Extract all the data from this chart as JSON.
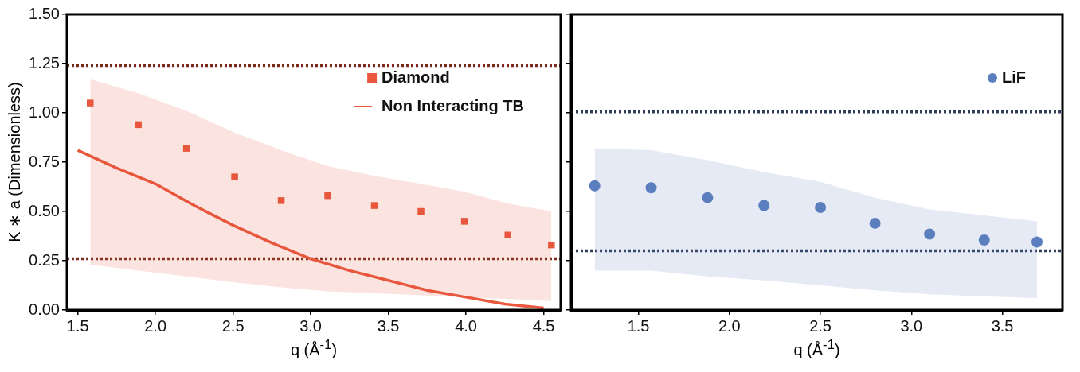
{
  "chart_data": [
    {
      "type": "scatter",
      "xlabel": "q (Å$^{-1}$)",
      "ylabel": "K ∗ a (Dimensionless)",
      "xlim": [
        1.43,
        4.61
      ],
      "xticks": [
        1.5,
        {
          "value": 2,
          "label": "2.0"
        },
        2.5,
        {
          "value": 3,
          "label": "3.0"
        },
        3.5,
        {
          "value": 4,
          "label": "4.0"
        },
        4.5
      ],
      "ylim": [
        0,
        1.5
      ],
      "yticks": [
        {
          "value": 0,
          "label": "0.00"
        },
        {
          "value": 0.25,
          "label": "0.25"
        },
        {
          "value": 0.5,
          "label": "0.50"
        },
        {
          "value": 0.75,
          "label": "0.75"
        },
        {
          "value": 1,
          "label": "1.00"
        },
        {
          "value": 1.25,
          "label": "1.25"
        },
        {
          "value": 1.5,
          "label": "1.50"
        }
      ],
      "legend": "top right",
      "grid": false,
      "series": [
        {
          "name": "Diamond",
          "marker": "square",
          "color": "#e9573d",
          "x": [
            1.58,
            1.89,
            2.2,
            2.51,
            2.81,
            3.11,
            3.41,
            3.71,
            3.99,
            4.27,
            4.55
          ],
          "values": [
            1.05,
            0.94,
            0.82,
            0.675,
            0.555,
            0.58,
            0.53,
            0.5,
            0.45,
            0.38,
            0.33
          ],
          "lower": [
            0.23,
            0.2,
            0.17,
            0.14,
            0.115,
            0.095,
            0.085,
            0.075,
            0.065,
            0.055,
            0.045
          ],
          "upper": [
            1.17,
            1.1,
            1.01,
            0.9,
            0.81,
            0.73,
            0.68,
            0.64,
            0.6,
            0.54,
            0.5
          ]
        },
        {
          "name": "Non Interacting TB",
          "type": "line",
          "marker": "none",
          "color": "#e9573d",
          "x": [
            1.5,
            1.75,
            2,
            2.25,
            2.5,
            2.75,
            3,
            3.25,
            3.5,
            3.75,
            4,
            4.25,
            4.5
          ],
          "values": [
            0.81,
            0.72,
            0.64,
            0.53,
            0.43,
            0.34,
            0.26,
            0.2,
            0.15,
            0.1,
            0.065,
            0.03,
            0.01
          ]
        }
      ],
      "ref_lines": [
        {
          "axis": "y",
          "value": 1.24,
          "color": "#7b2a1c",
          "line_style": "dotted"
        },
        {
          "axis": "y",
          "value": 0.26,
          "color": "#7b2a1c",
          "line_style": "dotted"
        }
      ]
    },
    {
      "type": "scatter",
      "xlabel": "q (Å$^{-1}$)",
      "xlim": [
        1.13,
        3.83
      ],
      "xticks": [
        1.5,
        {
          "value": 2,
          "label": "2.0"
        },
        2.5,
        {
          "value": 3,
          "label": "3.0"
        },
        3.5
      ],
      "ylim": [
        0,
        1.5
      ],
      "yticks": [
        {
          "value": 0,
          "label": null
        },
        {
          "value": 0.25,
          "label": null
        },
        {
          "value": 0.5,
          "label": null
        },
        {
          "value": 0.75,
          "label": null
        },
        {
          "value": 1,
          "label": null
        },
        {
          "value": 1.25,
          "label": null
        },
        {
          "value": 1.5,
          "label": null
        }
      ],
      "tick_labels": "x",
      "legend": "top right",
      "grid": false,
      "series": [
        {
          "name": "LiF",
          "marker": "circle",
          "color": "#5b7fbe",
          "x": [
            1.26,
            1.57,
            1.88,
            2.19,
            2.5,
            2.8,
            3.1,
            3.4,
            3.69
          ],
          "values": [
            0.63,
            0.62,
            0.57,
            0.53,
            0.52,
            0.44,
            0.385,
            0.355,
            0.345
          ],
          "lower": [
            0.2,
            0.2,
            0.17,
            0.15,
            0.125,
            0.1,
            0.08,
            0.07,
            0.06
          ],
          "upper": [
            0.82,
            0.81,
            0.76,
            0.7,
            0.65,
            0.57,
            0.51,
            0.48,
            0.45
          ]
        }
      ],
      "ref_lines": [
        {
          "axis": "y",
          "value": 1.005,
          "color": "#2e3d5a",
          "line_style": "dotted"
        },
        {
          "axis": "y",
          "value": 0.3,
          "color": "#2e3d5a",
          "line_style": "dotted"
        }
      ]
    }
  ]
}
